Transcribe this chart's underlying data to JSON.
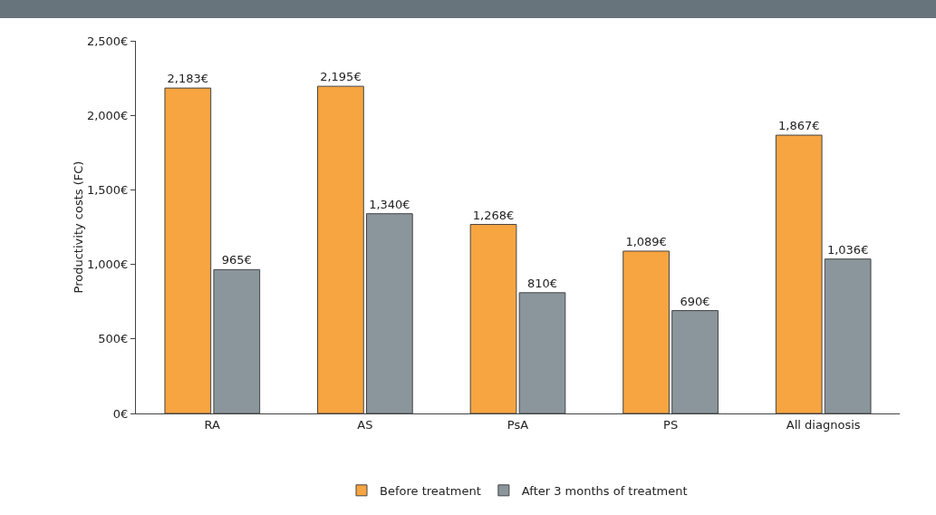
{
  "chart_data": {
    "type": "bar",
    "ylabel": "Productivity costs (FC)",
    "categories": [
      "RA",
      "AS",
      "PsA",
      "PS",
      "All diagnosis"
    ],
    "series": [
      {
        "name": "Before treatment",
        "color": "#f7a540",
        "values": [
          2183,
          2195,
          1268,
          1089,
          1867
        ],
        "value_labels": [
          "2,183€",
          "2,195€",
          "1,268€",
          "1,089€",
          "1,867€"
        ]
      },
      {
        "name": "After 3 months of treatment",
        "color": "#8a969c",
        "values": [
          965,
          1340,
          810,
          690,
          1036
        ],
        "value_labels": [
          "965€",
          "1,340€",
          "810€",
          "690€",
          "1,036€"
        ]
      }
    ],
    "ylim": [
      0,
      2500
    ],
    "yticks": [
      {
        "value": 0,
        "label": "0€"
      },
      {
        "value": 500,
        "label": "500€"
      },
      {
        "value": 1000,
        "label": "1,000€"
      },
      {
        "value": 1500,
        "label": "1,500€"
      },
      {
        "value": 2000,
        "label": "2,000€"
      },
      {
        "value": 2500,
        "label": "2,500€"
      }
    ],
    "grid": false,
    "legend": "bottom"
  }
}
